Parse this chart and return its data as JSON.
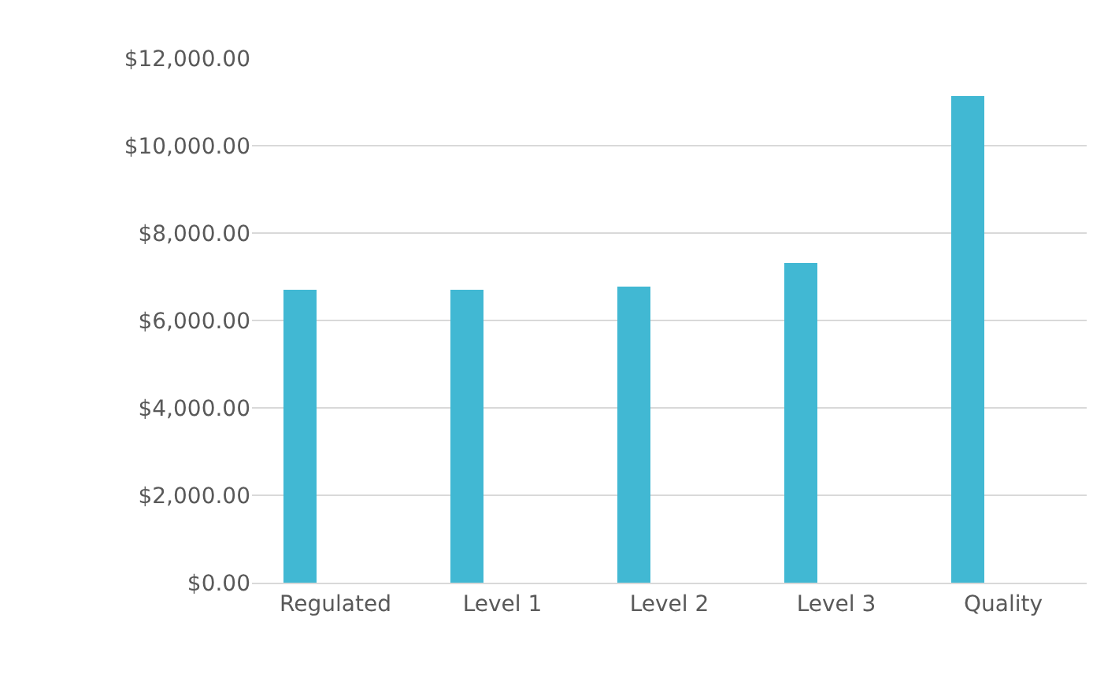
{
  "chart_data": {
    "type": "bar",
    "categories": [
      "Regulated",
      "Level 1",
      "Level 2",
      "Level 3",
      "Quality"
    ],
    "values": [
      6720,
      6720,
      6770,
      7300,
      11130
    ],
    "color": "#41b8d3",
    "ylim": [
      0,
      12000
    ],
    "yticks": [
      {
        "value": 0,
        "label": "$0.00"
      },
      {
        "value": 2000,
        "label": "$2,000.00"
      },
      {
        "value": 4000,
        "label": "$4,000.00"
      },
      {
        "value": 6000,
        "label": "$6,000.00"
      },
      {
        "value": 8000,
        "label": "$8,000.00"
      },
      {
        "value": 10000,
        "label": "$10,000.00"
      },
      {
        "value": 12000,
        "label": "$12,000.00"
      }
    ],
    "grid": "y",
    "legend": false
  }
}
